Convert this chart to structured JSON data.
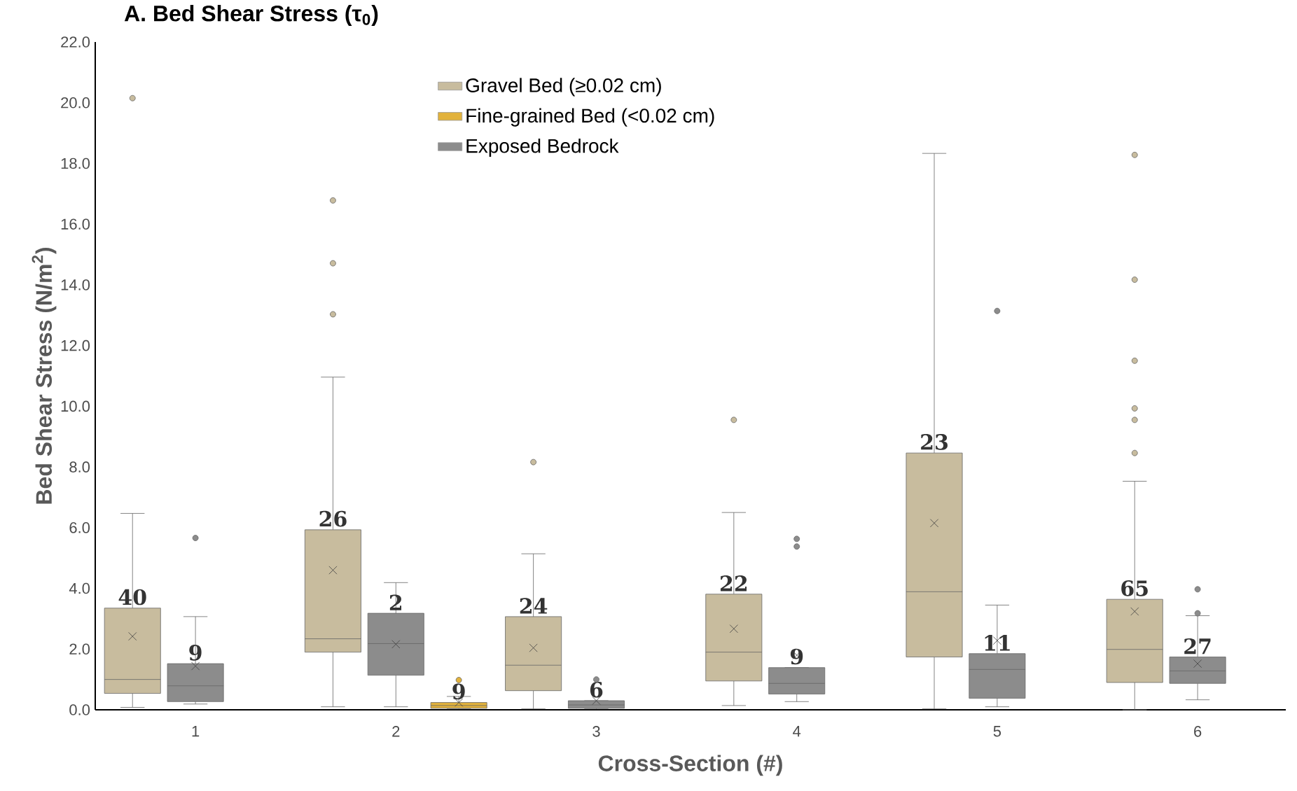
{
  "chart_data": {
    "type": "box",
    "title": "A. Bed Shear Stress (τ$_{0}$)",
    "xlabel": "Cross-Section (#)",
    "ylabel": "Bed Shear Stress (N/m$^{2}$)",
    "categories": [
      "1",
      "2",
      "3",
      "4",
      "5",
      "6"
    ],
    "ylim": [
      0,
      22
    ],
    "yticks": [
      {
        "value": 0,
        "label": "0.0"
      },
      {
        "value": 2,
        "label": "2.0"
      },
      {
        "value": 4,
        "label": "4.0"
      },
      {
        "value": 6,
        "label": "6.0"
      },
      {
        "value": 8,
        "label": "8.0"
      },
      {
        "value": 10,
        "label": "10.0"
      },
      {
        "value": 12,
        "label": "12.0"
      },
      {
        "value": 14,
        "label": "14.0"
      },
      {
        "value": 16,
        "label": "16.0"
      },
      {
        "value": 18,
        "label": "18.0"
      },
      {
        "value": 20,
        "label": "20.0"
      },
      {
        "value": 22,
        "label": "22.0"
      }
    ],
    "legend": "top",
    "grid": false,
    "series": [
      {
        "name": "Gravel Bed (≥0.02 cm)",
        "color": "#c8bc9e",
        "boxes": [
          {
            "low": 0.08,
            "q1": 0.54,
            "median": 1.0,
            "q3": 3.35,
            "high": 6.47,
            "mean": 2.42,
            "outliers": [
              20.15
            ]
          },
          {
            "low": 0.1,
            "q1": 1.9,
            "median": 2.34,
            "q3": 5.93,
            "high": 10.96,
            "mean": 4.6,
            "outliers": [
              16.78,
              14.71,
              13.03
            ]
          },
          {
            "low": 0.03,
            "q1": 0.63,
            "median": 1.47,
            "q3": 3.07,
            "high": 5.14,
            "mean": 2.04,
            "outliers": [
              8.16
            ]
          },
          {
            "low": 0.14,
            "q1": 0.95,
            "median": 1.9,
            "q3": 3.81,
            "high": 6.5,
            "mean": 2.67,
            "outliers": [
              9.55
            ]
          },
          {
            "low": 0.03,
            "q1": 1.74,
            "median": 3.89,
            "q3": 8.46,
            "high": 18.33,
            "mean": 6.15
          },
          {
            "low": 0,
            "q1": 0.9,
            "median": 1.99,
            "q3": 3.64,
            "high": 7.53,
            "mean": 3.24,
            "outliers": [
              18.28,
              14.17,
              11.5,
              9.93,
              9.55,
              8.46
            ]
          }
        ]
      },
      {
        "name": "Fine-grained Bed (<0.02 cm)",
        "color": "#e2b23c",
        "boxes": [
          null,
          {
            "low": 0.03,
            "q1": 0.05,
            "median": 0.14,
            "q3": 0.24,
            "high": 0.44,
            "mean": 0.24,
            "outliers": [
              0.98
            ]
          },
          null,
          null,
          null,
          null
        ]
      },
      {
        "name": "Exposed Bedrock",
        "color": "#8c8c8c",
        "boxes": [
          {
            "low": 0.19,
            "q1": 0.27,
            "median": 0.79,
            "q3": 1.52,
            "high": 3.07,
            "mean": 1.44,
            "outliers": [
              5.66
            ]
          },
          {
            "low": 0.1,
            "q1": 1.14,
            "median": 2.18,
            "q3": 3.18,
            "high": 4.19,
            "mean": 2.16
          },
          {
            "low": 0.03,
            "q1": 0.05,
            "median": 0.16,
            "q3": 0.3,
            "high": 0.3,
            "mean": 0.3,
            "outliers": [
              1.0
            ]
          },
          {
            "low": 0.27,
            "q1": 0.52,
            "median": 0.87,
            "q3": 1.39,
            "high": 1.39,
            "mean": 1.8,
            "outliers": [
              5.63,
              5.38
            ]
          },
          {
            "low": 0.1,
            "q1": 0.38,
            "median": 1.33,
            "q3": 1.85,
            "high": 3.45,
            "mean": 2.28,
            "outliers": [
              13.14
            ]
          },
          {
            "low": 0.33,
            "q1": 0.87,
            "median": 1.28,
            "q3": 1.74,
            "high": 3.1,
            "mean": 1.52,
            "outliers": [
              3.97,
              3.18
            ]
          }
        ]
      }
    ],
    "annotations": [
      "40",
      "9",
      "26",
      "2",
      "9",
      "24",
      "6",
      "22",
      "9",
      "23",
      "11",
      "65",
      "27"
    ]
  }
}
